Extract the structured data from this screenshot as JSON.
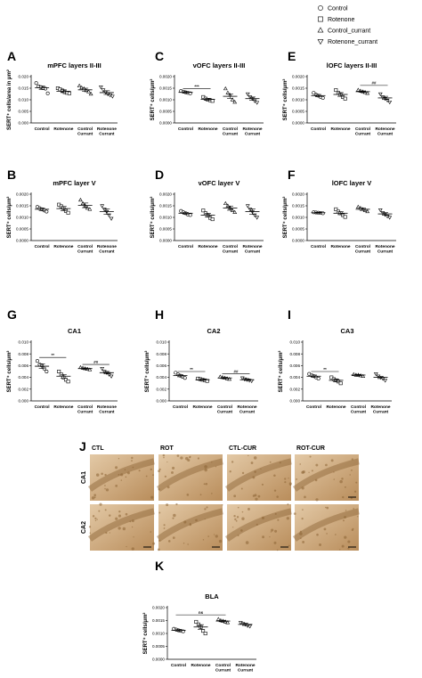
{
  "legend": {
    "entries": [
      {
        "name": "Control",
        "marker": "circle"
      },
      {
        "name": "Rotenone",
        "marker": "square"
      },
      {
        "name": "Control_currant",
        "marker": "triangle-up"
      },
      {
        "name": "Rotenone_currant",
        "marker": "triangle-down"
      }
    ]
  },
  "chart_data": [
    {
      "letter": "A",
      "type": "scatter",
      "title": "mPFC layers II-III",
      "ylabel": "SERT⁺ cells/area in μm²",
      "ylim": [
        0,
        0.02
      ],
      "yticks": [
        "0.000",
        "0.005",
        "0.010",
        "0.015",
        "0.020"
      ],
      "categories": [
        "Control",
        "Rotenone",
        "Control\nCurrant",
        "Rotenone\nCurrant"
      ],
      "means": [
        0.0152,
        0.0137,
        0.0143,
        0.0131
      ],
      "sem": [
        0.0008,
        0.0006,
        0.0007,
        0.0008
      ],
      "points": [
        [
          0.0172,
          0.0158,
          0.0155,
          0.015,
          0.0148,
          0.0128
        ],
        [
          0.015,
          0.0145,
          0.014,
          0.0133,
          0.013,
          0.0128
        ],
        [
          0.016,
          0.0152,
          0.0148,
          0.014,
          0.0135,
          0.0125
        ],
        [
          0.0155,
          0.0142,
          0.0133,
          0.0125,
          0.012,
          0.0115
        ]
      ],
      "significance": []
    },
    {
      "letter": "C",
      "type": "scatter",
      "title": "vOFC layers II-III",
      "ylabel": "SERT⁺ cells/μm²",
      "ylim": [
        0,
        0.002
      ],
      "yticks": [
        "0.0000",
        "0.0005",
        "0.0010",
        "0.0015",
        "0.0020"
      ],
      "categories": [
        "Control",
        "Rotenone",
        "Control\nCurrant",
        "Rotenone\nCurrant"
      ],
      "means": [
        0.00132,
        0.00102,
        0.00115,
        0.00105
      ],
      "sem": [
        3e-05,
        4e-05,
        9e-05,
        7e-05
      ],
      "points": [
        [
          0.00138,
          0.00135,
          0.00132,
          0.0013,
          0.00128
        ],
        [
          0.00112,
          0.00105,
          0.001,
          0.00098,
          0.00095
        ],
        [
          0.00148,
          0.0013,
          0.0012,
          0.001,
          0.0009
        ],
        [
          0.00125,
          0.00112,
          0.00105,
          0.00095,
          0.00088
        ]
      ],
      "significance": [
        {
          "from": 0,
          "to": 1,
          "y": 0.00148,
          "label": "***"
        }
      ]
    },
    {
      "letter": "E",
      "type": "scatter",
      "title": "lOFC layers II-III",
      "ylabel": "SERT⁺ cells/μm²",
      "ylim": [
        0,
        0.002
      ],
      "yticks": [
        "0.0000",
        "0.0005",
        "0.0010",
        "0.0015",
        "0.0020"
      ],
      "categories": [
        "Control",
        "Rotenone",
        "Control\nCurrant",
        "Rotenone\nCurrant"
      ],
      "means": [
        0.00118,
        0.00123,
        0.00135,
        0.00108
      ],
      "sem": [
        5e-05,
        8e-05,
        3e-05,
        7e-05
      ],
      "points": [
        [
          0.0013,
          0.00122,
          0.00118,
          0.00112,
          0.00108
        ],
        [
          0.00142,
          0.0013,
          0.00122,
          0.00112,
          0.00105
        ],
        [
          0.00142,
          0.00138,
          0.00135,
          0.00132,
          0.00128
        ],
        [
          0.00125,
          0.00112,
          0.00105,
          0.00098,
          0.0009
        ]
      ],
      "significance": [
        {
          "from": 2,
          "to": 3,
          "y": 0.00162,
          "label": "##"
        }
      ]
    },
    {
      "letter": "B",
      "type": "scatter",
      "title": "mPFC layer V",
      "ylabel": "SERT⁺ cells/μm²",
      "ylim": [
        0,
        0.002
      ],
      "yticks": [
        "0.0000",
        "0.0005",
        "0.0010",
        "0.0015",
        "0.0020"
      ],
      "categories": [
        "Control",
        "Rotenone",
        "Control\nCurrant",
        "Rotenone\nCurrant"
      ],
      "means": [
        0.00135,
        0.00138,
        0.00152,
        0.00125
      ],
      "sem": [
        6e-05,
        9e-05,
        0.0001,
        0.00012
      ],
      "points": [
        [
          0.00145,
          0.0014,
          0.00135,
          0.0013,
          0.00125
        ],
        [
          0.00155,
          0.00148,
          0.0014,
          0.00128,
          0.0012
        ],
        [
          0.00175,
          0.0016,
          0.0015,
          0.0014,
          0.00135
        ],
        [
          0.0015,
          0.00135,
          0.00125,
          0.0011,
          0.00095
        ]
      ],
      "significance": []
    },
    {
      "letter": "D",
      "type": "scatter",
      "title": "vOFC layer V",
      "ylabel": "SERT⁺ cells/μm²",
      "ylim": [
        0,
        0.002
      ],
      "yticks": [
        "0.0000",
        "0.0005",
        "0.0010",
        "0.0015",
        "0.0020"
      ],
      "categories": [
        "Control",
        "Rotenone",
        "Control\nCurrant",
        "Rotenone\nCurrant"
      ],
      "means": [
        0.00118,
        0.0011,
        0.0014,
        0.00125
      ],
      "sem": [
        4e-05,
        8e-05,
        9e-05,
        0.00012
      ],
      "points": [
        [
          0.00128,
          0.00122,
          0.00118,
          0.00112,
          0.0011
        ],
        [
          0.0013,
          0.00118,
          0.00108,
          0.00098,
          0.00092
        ],
        [
          0.0016,
          0.0015,
          0.0014,
          0.0013,
          0.00122
        ],
        [
          0.0015,
          0.00135,
          0.00125,
          0.0011,
          0.001
        ]
      ],
      "significance": []
    },
    {
      "letter": "F",
      "type": "scatter",
      "title": "lOFC layer V",
      "ylabel": "SERT⁺ cells/μm²",
      "ylim": [
        0,
        0.002
      ],
      "yticks": [
        "0.0000",
        "0.0005",
        "0.0010",
        "0.0015",
        "0.0020"
      ],
      "categories": [
        "Control",
        "Rotenone",
        "Control\nCurrant",
        "Rotenone\nCurrant"
      ],
      "means": [
        0.0012,
        0.00118,
        0.00135,
        0.00115
      ],
      "sem": [
        2e-05,
        6e-05,
        5e-05,
        6e-05
      ],
      "points": [
        [
          0.00122,
          0.00121,
          0.0012,
          0.00119,
          0.00118
        ],
        [
          0.00135,
          0.00125,
          0.00118,
          0.0011,
          0.00102
        ],
        [
          0.00145,
          0.0014,
          0.00135,
          0.0013,
          0.00125
        ],
        [
          0.00132,
          0.0012,
          0.00112,
          0.00105,
          0.001
        ]
      ],
      "significance": []
    },
    {
      "letter": "G",
      "type": "scatter",
      "title": "CA1",
      "ylabel": "SERT⁺ cells/μm²",
      "ylim": [
        0,
        0.01
      ],
      "yticks": [
        "0.000",
        "0.002",
        "0.004",
        "0.006",
        "0.008",
        "0.010"
      ],
      "categories": [
        "Control",
        "Rotenone",
        "Control\nCurrant",
        "Rotenone\nCurrant"
      ],
      "means": [
        0.0059,
        0.0042,
        0.0055,
        0.0048
      ],
      "sem": [
        0.0004,
        0.0003,
        0.0001,
        0.0002
      ],
      "points": [
        [
          0.0068,
          0.0062,
          0.006,
          0.0055,
          0.005
        ],
        [
          0.005,
          0.0045,
          0.004,
          0.0036,
          0.0033
        ],
        [
          0.0057,
          0.0056,
          0.0055,
          0.0054,
          0.0053
        ],
        [
          0.0055,
          0.005,
          0.0048,
          0.0045,
          0.0042
        ]
      ],
      "significance": [
        {
          "from": 0,
          "to": 1,
          "y": 0.0074,
          "label": "**"
        },
        {
          "from": 2,
          "to": 3,
          "y": 0.0062,
          "label": "##"
        }
      ]
    },
    {
      "letter": "H",
      "type": "scatter",
      "title": "CA2",
      "ylabel": "SERT⁺ cells/μm²",
      "ylim": [
        0,
        0.01
      ],
      "yticks": [
        "0.000",
        "0.002",
        "0.004",
        "0.006",
        "0.008",
        "0.010"
      ],
      "categories": [
        "Control",
        "Rotenone",
        "Control\nCurrant",
        "Rotenone\nCurrant"
      ],
      "means": [
        0.0043,
        0.0036,
        0.0039,
        0.0036
      ],
      "sem": [
        0.0002,
        0.0001,
        0.0001,
        0.0001
      ],
      "points": [
        [
          0.0048,
          0.0045,
          0.0043,
          0.0041,
          0.0039
        ],
        [
          0.0038,
          0.0037,
          0.0036,
          0.0035,
          0.0034
        ],
        [
          0.0041,
          0.004,
          0.0039,
          0.0038,
          0.0037
        ],
        [
          0.0039,
          0.0037,
          0.0036,
          0.0035,
          0.0034
        ]
      ],
      "significance": [
        {
          "from": 0,
          "to": 1,
          "y": 0.005,
          "label": "**"
        },
        {
          "from": 2,
          "to": 3,
          "y": 0.0046,
          "label": "##"
        }
      ]
    },
    {
      "letter": "I",
      "type": "scatter",
      "title": "CA3",
      "ylabel": "SERT⁺ cells/μm²",
      "ylim": [
        0,
        0.01
      ],
      "yticks": [
        "0.000",
        "0.002",
        "0.004",
        "0.006",
        "0.008",
        "0.010"
      ],
      "categories": [
        "Control",
        "Rotenone",
        "Control\nCurrant",
        "Rotenone\nCurrant"
      ],
      "means": [
        0.0042,
        0.0035,
        0.0044,
        0.004
      ],
      "sem": [
        0.0002,
        0.0002,
        0.0001,
        0.0002
      ],
      "points": [
        [
          0.0046,
          0.0044,
          0.0042,
          0.004,
          0.0038
        ],
        [
          0.004,
          0.0037,
          0.0035,
          0.0033,
          0.003
        ],
        [
          0.0045,
          0.0044,
          0.0044,
          0.0043,
          0.0042
        ],
        [
          0.0046,
          0.0042,
          0.004,
          0.0038,
          0.0035
        ]
      ],
      "significance": [
        {
          "from": 0,
          "to": 1,
          "y": 0.005,
          "label": "**"
        }
      ]
    },
    {
      "letter": "K",
      "type": "scatter",
      "title": "BLA",
      "ylabel": "SERT⁺ cells/μm²",
      "ylim": [
        0,
        0.002
      ],
      "yticks": [
        "0.0000",
        "0.0005",
        "0.0010",
        "0.0015",
        "0.0020"
      ],
      "categories": [
        "Control",
        "Rotenone",
        "Control\nCurrant",
        "Rotenone\nCurrant"
      ],
      "means": [
        0.00112,
        0.00125,
        0.00148,
        0.00135
      ],
      "sem": [
        3e-05,
        9e-05,
        3e-05,
        4e-05
      ],
      "points": [
        [
          0.00118,
          0.00115,
          0.00112,
          0.0011,
          0.00108
        ],
        [
          0.00145,
          0.00135,
          0.00125,
          0.0011,
          0.001
        ],
        [
          0.00155,
          0.0015,
          0.00148,
          0.00145,
          0.00142
        ],
        [
          0.00142,
          0.00138,
          0.00135,
          0.0013,
          0.00128
        ]
      ],
      "significance": [
        {
          "from": 0,
          "to": 2,
          "y": 0.00172,
          "label": "ns"
        }
      ]
    }
  ],
  "micrographs": {
    "letter": "J",
    "columns": [
      "CTL",
      "ROT",
      "CTL-CUR",
      "ROT-CUR"
    ],
    "rows": [
      "CA1",
      "CA2"
    ]
  },
  "colors": {
    "tissue_light": "#e3c9a6",
    "tissue_dark": "#b98d5b",
    "stain": "#8a6233"
  }
}
